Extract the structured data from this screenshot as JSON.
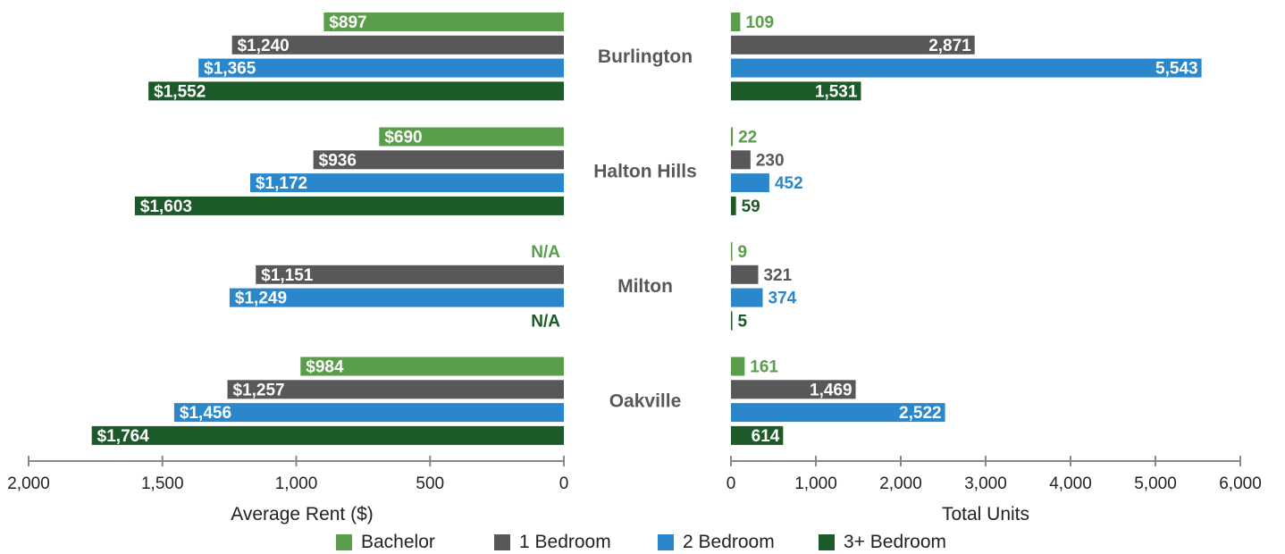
{
  "chart_data": [
    {
      "type": "bar",
      "orientation": "horizontal",
      "direction": "right-to-left",
      "categories": [
        "Burlington",
        "Halton Hills",
        "Milton",
        "Oakville"
      ],
      "series": [
        {
          "name": "Bachelor",
          "values": [
            897,
            690,
            null,
            984
          ],
          "labels": [
            "$897",
            "$690",
            "N/A",
            "$984"
          ]
        },
        {
          "name": "1 Bedroom",
          "values": [
            1240,
            936,
            1151,
            1257
          ],
          "labels": [
            "$1,240",
            "$936",
            "$1,151",
            "$1,257"
          ]
        },
        {
          "name": "2 Bedroom",
          "values": [
            1365,
            1172,
            1249,
            1456
          ],
          "labels": [
            "$1,365",
            "$1,172",
            "$1,249",
            "$1,456"
          ]
        },
        {
          "name": "3+ Bedroom",
          "values": [
            1552,
            1603,
            null,
            1764
          ],
          "labels": [
            "$1,552",
            "$1,603",
            "N/A",
            "$1,764"
          ]
        }
      ],
      "xlabel": "Average Rent ($)",
      "xlim": [
        0,
        2000
      ],
      "xticks": [
        2000,
        1500,
        1000,
        500,
        0
      ],
      "xtick_labels": [
        "2,000",
        "1,500",
        "1,000",
        "500",
        "0"
      ],
      "grid": false
    },
    {
      "type": "bar",
      "orientation": "horizontal",
      "direction": "left-to-right",
      "categories": [
        "Burlington",
        "Halton Hills",
        "Milton",
        "Oakville"
      ],
      "series": [
        {
          "name": "Bachelor",
          "values": [
            109,
            22,
            9,
            161
          ],
          "labels": [
            "109",
            "22",
            "9",
            "161"
          ]
        },
        {
          "name": "1 Bedroom",
          "values": [
            2871,
            230,
            321,
            1469
          ],
          "labels": [
            "2,871",
            "230",
            "321",
            "1,469"
          ]
        },
        {
          "name": "2 Bedroom",
          "values": [
            5543,
            452,
            374,
            2522
          ],
          "labels": [
            "5,543",
            "452",
            "374",
            "2,522"
          ]
        },
        {
          "name": "3+ Bedroom",
          "values": [
            1531,
            59,
            5,
            614
          ],
          "labels": [
            "1,531",
            "59",
            "5",
            "614"
          ]
        }
      ],
      "xlabel": "Total Units",
      "xlim": [
        0,
        6000
      ],
      "xticks": [
        0,
        1000,
        2000,
        3000,
        4000,
        5000,
        6000
      ],
      "xtick_labels": [
        "0",
        "1,000",
        "2,000",
        "3,000",
        "4,000",
        "5,000",
        "6,000"
      ],
      "grid": false
    }
  ],
  "legend": {
    "placement": "bottom",
    "items": [
      {
        "name": "Bachelor",
        "color": "#5a9e4b"
      },
      {
        "name": "1 Bedroom",
        "color": "#58585a"
      },
      {
        "name": "2 Bedroom",
        "color": "#2b87cc"
      },
      {
        "name": "3+ Bedroom",
        "color": "#1c5a29"
      }
    ]
  },
  "colors": {
    "bachelor": "#5a9e4b",
    "one_bedroom": "#58585a",
    "two_bedroom": "#2b87cc",
    "three_plus_bedroom": "#1c5a29",
    "axis": "#888888",
    "category_text": "#58585a"
  }
}
